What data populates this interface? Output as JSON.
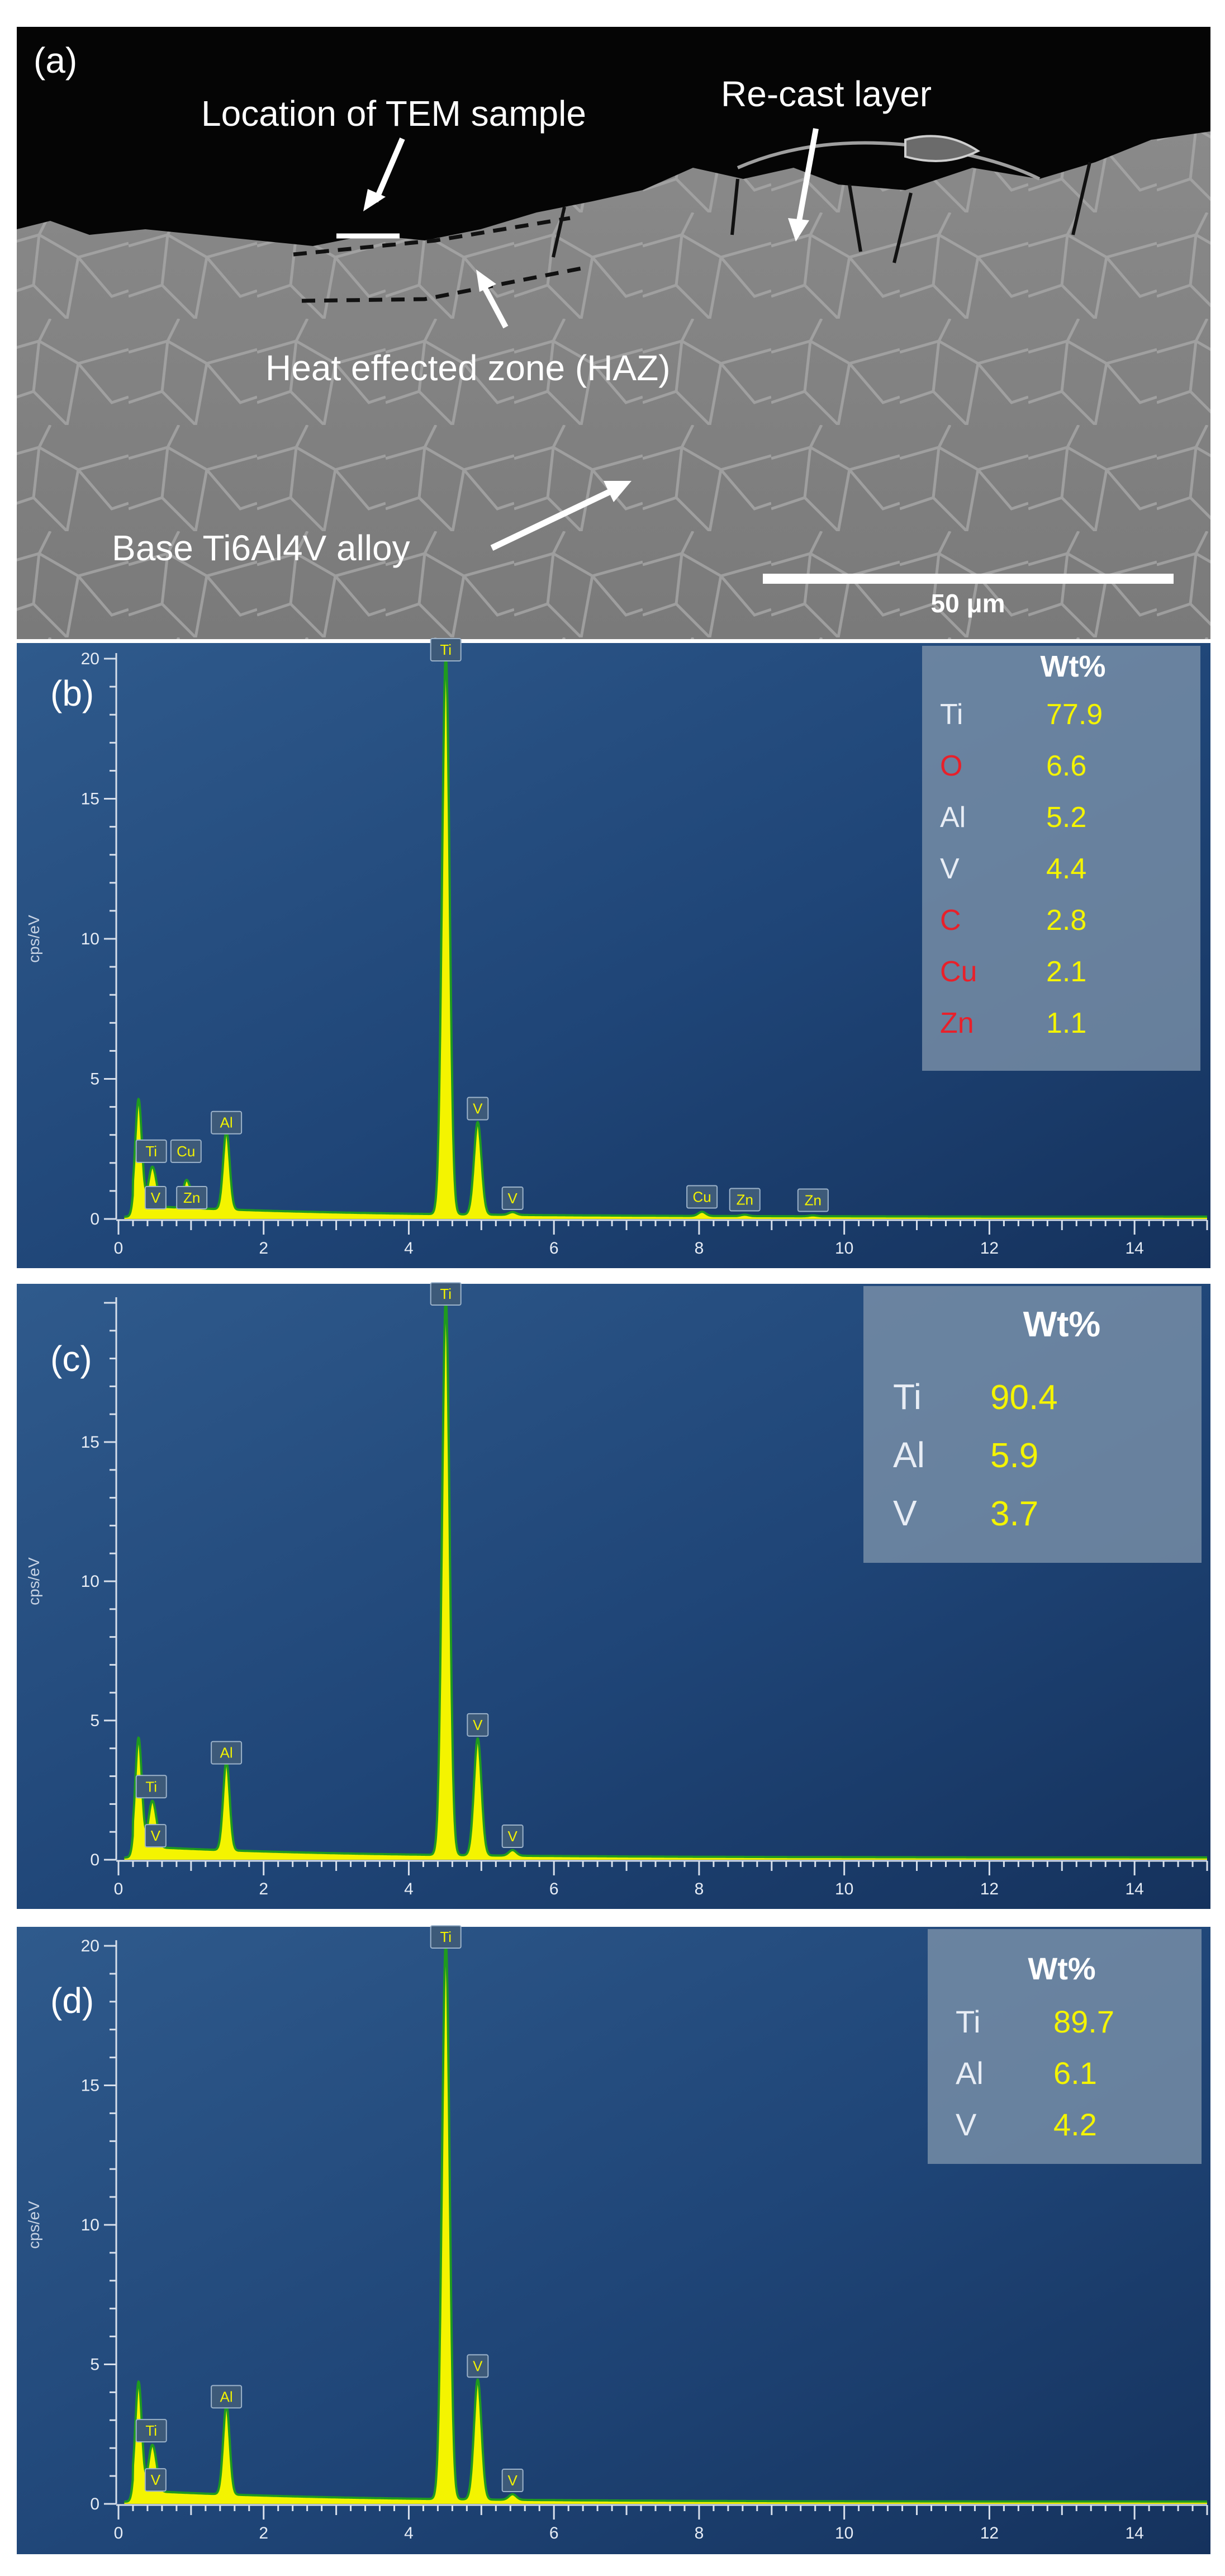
{
  "sem": {
    "panel_letter": "(a)",
    "labels": {
      "tem_location": "Location of TEM sample",
      "recast": "Re-cast layer",
      "haz": "Heat effected zone (HAZ)",
      "base": "Base Ti6Al4V alloy"
    },
    "scale_bar": "50 μm"
  },
  "chart_data": [
    {
      "type": "line",
      "panel_letter": "(b)",
      "ylabel": "cps/eV",
      "xlabel": "",
      "xlim": [
        0,
        15
      ],
      "ylim": [
        0,
        20
      ],
      "x_ticks": [
        0,
        2,
        4,
        6,
        8,
        10,
        12,
        14
      ],
      "y_ticks": [
        0,
        5,
        10,
        15,
        20
      ],
      "peaks": [
        {
          "label": "",
          "x": 0.277,
          "y": 3.8
        },
        {
          "label": "Ti",
          "x": 0.452,
          "y": 1.1
        },
        {
          "label": "V",
          "x": 0.511,
          "y": 0.6
        },
        {
          "label": "Cu",
          "x": 0.93,
          "y": 0.9
        },
        {
          "label": "Zn",
          "x": 1.01,
          "y": 0.4
        },
        {
          "label": "Al",
          "x": 1.487,
          "y": 2.8
        },
        {
          "label": "Ti",
          "x": 4.51,
          "y": 20.0
        },
        {
          "label": "V",
          "x": 4.95,
          "y": 3.3
        },
        {
          "label": "V",
          "x": 5.43,
          "y": 0.1
        },
        {
          "label": "Cu",
          "x": 8.04,
          "y": 0.15
        },
        {
          "label": "Zn",
          "x": 8.63,
          "y": 0.05
        },
        {
          "label": "Zn",
          "x": 9.57,
          "y": 0.03
        }
      ],
      "composition": {
        "header": "Wt%",
        "rows": [
          {
            "element": "Ti",
            "value": "77.9",
            "color": "#e8edf5"
          },
          {
            "element": "O",
            "value": "6.6",
            "color": "#e8202a"
          },
          {
            "element": "Al",
            "value": "5.2",
            "color": "#e8edf5"
          },
          {
            "element": "V",
            "value": "4.4",
            "color": "#e8edf5"
          },
          {
            "element": "C",
            "value": "2.8",
            "color": "#e8202a"
          },
          {
            "element": "Cu",
            "value": "2.1",
            "color": "#e8202a"
          },
          {
            "element": "Zn",
            "value": "1.1",
            "color": "#e8202a"
          }
        ]
      }
    },
    {
      "type": "line",
      "panel_letter": "(c)",
      "ylabel": "cps/eV",
      "xlabel": "",
      "xlim": [
        0,
        15
      ],
      "ylim": [
        0,
        20
      ],
      "x_ticks": [
        0,
        2,
        4,
        6,
        8,
        10,
        12,
        14
      ],
      "y_ticks": [
        0,
        5,
        10,
        15
      ],
      "peaks": [
        {
          "label": "",
          "x": 0.277,
          "y": 3.9
        },
        {
          "label": "Ti",
          "x": 0.452,
          "y": 1.3
        },
        {
          "label": "V",
          "x": 0.511,
          "y": 0.7
        },
        {
          "label": "Al",
          "x": 1.487,
          "y": 3.2
        },
        {
          "label": "Ti",
          "x": 4.51,
          "y": 20.0
        },
        {
          "label": "V",
          "x": 4.95,
          "y": 4.2
        },
        {
          "label": "V",
          "x": 5.43,
          "y": 0.2
        }
      ],
      "composition": {
        "header": "Wt%",
        "rows": [
          {
            "element": "Ti",
            "value": "90.4",
            "color": "#e8edf5"
          },
          {
            "element": "Al",
            "value": "5.9",
            "color": "#e8edf5"
          },
          {
            "element": "V",
            "value": "3.7",
            "color": "#e8edf5"
          }
        ]
      }
    },
    {
      "type": "line",
      "panel_letter": "(d)",
      "ylabel": "cps/eV",
      "xlabel": "",
      "xlim": [
        0,
        15
      ],
      "ylim": [
        0,
        20
      ],
      "x_ticks": [
        0,
        2,
        4,
        6,
        8,
        10,
        12,
        14
      ],
      "y_ticks": [
        0,
        5,
        10,
        15,
        20
      ],
      "peaks": [
        {
          "label": "",
          "x": 0.277,
          "y": 3.9
        },
        {
          "label": "Ti",
          "x": 0.452,
          "y": 1.3
        },
        {
          "label": "V",
          "x": 0.511,
          "y": 0.7
        },
        {
          "label": "Al",
          "x": 1.487,
          "y": 3.2
        },
        {
          "label": "Ti",
          "x": 4.51,
          "y": 20.0
        },
        {
          "label": "V",
          "x": 4.95,
          "y": 4.3
        },
        {
          "label": "V",
          "x": 5.43,
          "y": 0.2
        }
      ],
      "composition": {
        "header": "Wt%",
        "rows": [
          {
            "element": "Ti",
            "value": "89.7",
            "color": "#e8edf5"
          },
          {
            "element": "Al",
            "value": "6.1",
            "color": "#e8edf5"
          },
          {
            "element": "V",
            "value": "4.2",
            "color": "#e8edf5"
          }
        ]
      }
    }
  ]
}
